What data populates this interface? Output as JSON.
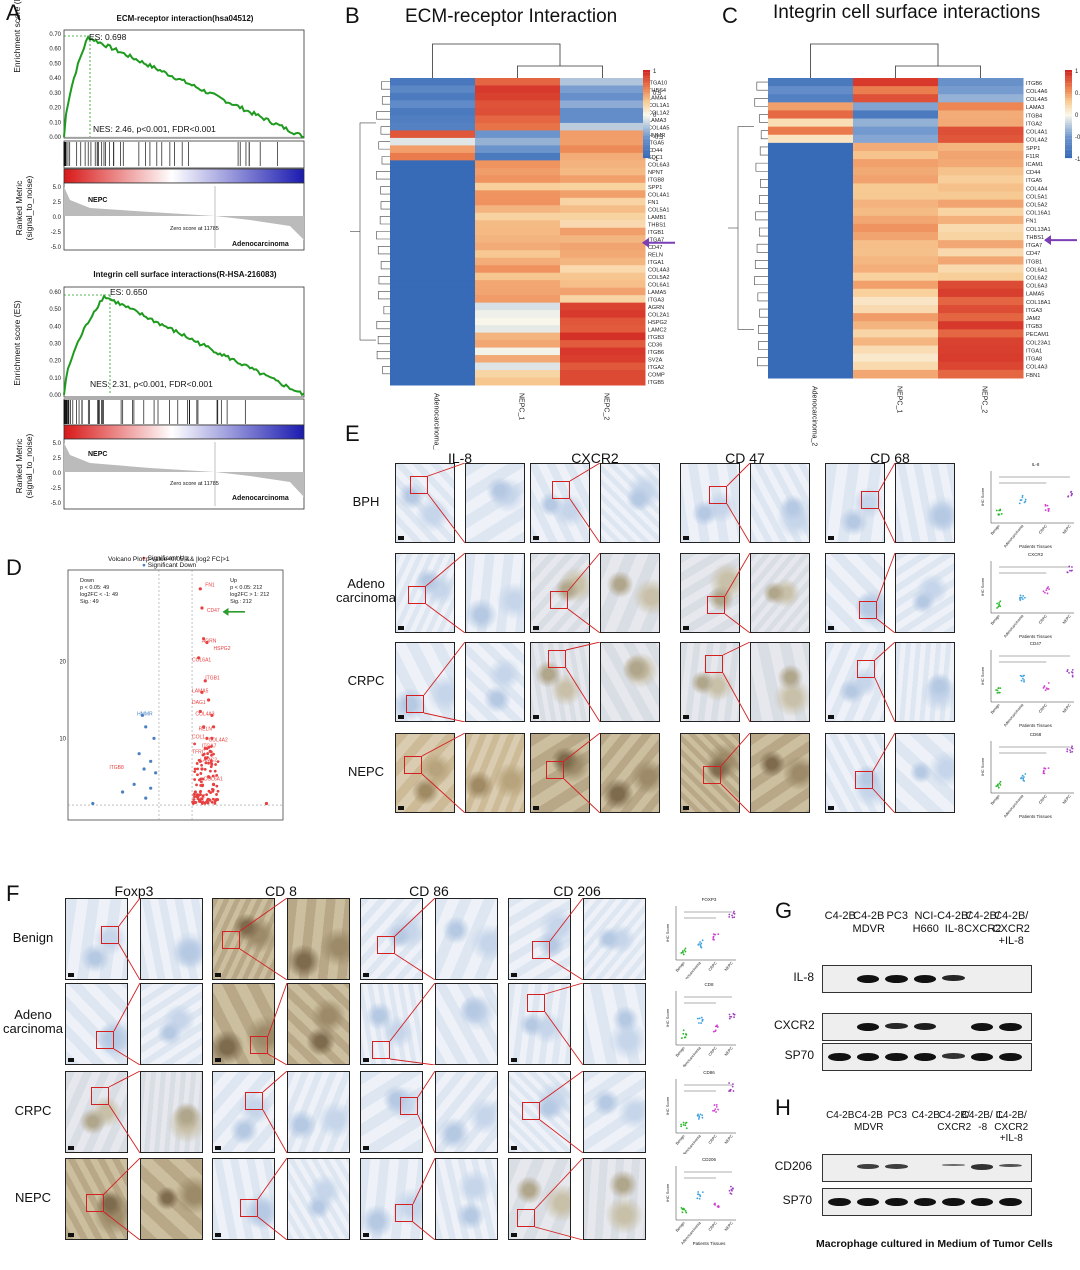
{
  "panel_letters": {
    "A": "A",
    "B": "B",
    "C": "C",
    "D": "D",
    "E": "E",
    "F": "F",
    "G": "G",
    "H": "H"
  },
  "gsea": [
    {
      "title": "ECM-receptor interaction(hsa04512)",
      "es_label": "ES: 0.698",
      "stats": "NES: 2.46, p<0.001, FDR<0.001",
      "ylabel_es": "Enrichment score (ES)",
      "ylabel_rank": "Ranked Metric (signal_to_noise)",
      "zero_label": "Zero score at 11785",
      "left_group": "NEPC",
      "right_group": "Adenocarcinoma",
      "es_ticks": [
        "0.70",
        "0.60",
        "0.50",
        "0.40",
        "0.30",
        "0.20",
        "0.10",
        "0.00"
      ],
      "rank_ticks": [
        "5.0",
        "2.5",
        "0.0",
        "-2.5",
        "-5.0"
      ]
    },
    {
      "title": "Integrin cell surface interactions(R-HSA-216083)",
      "es_label": "ES: 0.650",
      "stats": "NES: 2.31, p<0.001, FDR<0.001",
      "ylabel_es": "Enrichment score (ES)",
      "ylabel_rank": "Ranked Metric (signal_to_noise)",
      "zero_label": "Zero score at 11785",
      "left_group": "NEPC",
      "right_group": "Adenocarcinoma",
      "es_ticks": [
        "0.60",
        "0.50",
        "0.40",
        "0.30",
        "0.20",
        "0.10",
        "0.00"
      ],
      "rank_ticks": [
        "5.0",
        "2.5",
        "0.0",
        "-2.5",
        "-5.0"
      ]
    }
  ],
  "heatmaps": [
    {
      "title": "ECM-receptor Interaction",
      "columns": [
        "Adenocarcinoma_2",
        "NEPC_1",
        "NEPC_2"
      ],
      "legend_ticks": [
        "1",
        "0.5",
        "0",
        "-0.5",
        "-1"
      ],
      "genes": [
        "ITGA10",
        "THBS4",
        "LAMA4",
        "COL1A1",
        "COL1A2",
        "LAMA3",
        "COL4A5",
        "HMMR",
        "ITGA5",
        "CD44",
        "SDC1",
        "COL6A3",
        "NPNT",
        "ITGB8",
        "SPP1",
        "COL4A1",
        "FN1",
        "COL5A1",
        "LAMB1",
        "THBS1",
        "ITGB1",
        "ITGA7",
        "CD47",
        "RELN",
        "ITGA1",
        "COL4A3",
        "COL5A2",
        "COL6A1",
        "LAMA5",
        "ITGA3",
        "AGRN",
        "COL2A1",
        "HSPG2",
        "LAMC2",
        "ITGB3",
        "CD36",
        "ITGB6",
        "SV2A",
        "ITGA2",
        "COMP",
        "ITGB5"
      ]
    },
    {
      "title": "Integrin cell surface interactions",
      "columns": [
        "Adenocarcinoma_2",
        "NEPC_1",
        "NEPC_2"
      ],
      "legend_ticks": [
        "1",
        "0.5",
        "0",
        "-0.5",
        "-1"
      ],
      "genes": [
        "ITGB6",
        "COL4A6",
        "COL4A5",
        "LAMA3",
        "ITGB4",
        "ITGA2",
        "COL4A1",
        "COL4A2",
        "SPP1",
        "F11R",
        "ICAM1",
        "CD44",
        "ITGA5",
        "COL4A4",
        "COL5A1",
        "COL5A2",
        "COL16A1",
        "FN1",
        "COL13A1",
        "THBS1",
        "ITGA7",
        "CD47",
        "ITGB1",
        "COL6A1",
        "COL6A2",
        "COL6A3",
        "LAMA5",
        "COL18A1",
        "ITGA3",
        "JAM2",
        "ITGB3",
        "PECAM1",
        "COL23A1",
        "ITGA1",
        "ITGA8",
        "COL4A3",
        "FBN1"
      ]
    }
  ],
  "volcano": {
    "title": "Volcano Plot:p-value<0.05 && |log2 FC|>1",
    "legend": [
      "Significant Up",
      "Significant Down"
    ],
    "left_stats": [
      "Down",
      "p < 0.05: 49",
      "log2FC < -1: 49",
      "Sig.: 49"
    ],
    "right_stats": [
      "Up",
      "p < 0.05: 212",
      "log2FC > 1: 212",
      "Sig.: 212"
    ],
    "xlabel": "log2 FoldChange",
    "ylabel": "-log10 p-value",
    "xticks": [
      "-4",
      "0",
      "4"
    ],
    "yticks": [
      "20",
      "10"
    ],
    "gene_labels": [
      "FN1",
      "CD47",
      "AGRN",
      "HSPG2",
      "COL6A1",
      "ITGB1",
      "LAMA5",
      "DAG1",
      "COL4A3",
      "HMMR",
      "RELN",
      "COL1",
      "ITGA7",
      "TFRC",
      "COL4A2",
      "LAMC2",
      "ITGB8",
      "COL6A1",
      "SDC2"
    ],
    "chart_data": {
      "type": "scatter",
      "title": "Volcano Plot:p-value<0.05 && |log2 FC|>1",
      "xlabel": "log2 FoldChange",
      "ylabel": "-log10 p-value",
      "series": [
        {
          "name": "Significant Up",
          "points": [
            [
              1.5,
              29.5
            ],
            [
              1.6,
              27.0
            ],
            [
              1.7,
              23.0
            ],
            [
              1.9,
              22.5
            ],
            [
              1.4,
              20.5
            ],
            [
              1.8,
              17.5
            ],
            [
              1.6,
              16.0
            ],
            [
              2.0,
              15.0
            ],
            [
              1.5,
              13.5
            ],
            [
              2.2,
              13.0
            ],
            [
              1.7,
              11.5
            ],
            [
              2.3,
              11.5
            ],
            [
              1.9,
              10.0
            ],
            [
              2.2,
              10.0
            ],
            [
              1.8,
              8.7
            ],
            [
              2.1,
              8.3
            ],
            [
              1.5,
              7.0
            ],
            [
              1.6,
              6.0
            ],
            [
              2.0,
              5.0
            ],
            [
              2.3,
              4.0
            ],
            [
              1.2,
              3.0
            ],
            [
              1.3,
              2.5
            ],
            [
              1.5,
              2.0
            ],
            [
              2.5,
              2.0
            ],
            [
              5.5,
              1.5
            ]
          ]
        },
        {
          "name": "Significant Down",
          "points": [
            [
              -2.0,
              13.0
            ],
            [
              -1.8,
              11.5
            ],
            [
              -1.3,
              10.0
            ],
            [
              -2.2,
              8.0
            ],
            [
              -1.5,
              7.0
            ],
            [
              -1.9,
              6.0
            ],
            [
              -1.2,
              5.5
            ],
            [
              -2.5,
              4.0
            ],
            [
              -3.2,
              3.0
            ],
            [
              -1.5,
              3.5
            ],
            [
              -1.8,
              2.2
            ],
            [
              -5.0,
              1.5
            ]
          ]
        }
      ]
    }
  },
  "ihc_e": {
    "columns": [
      "IL-8",
      "CXCR2",
      "CD 47",
      "CD 68"
    ],
    "rows": [
      "BPH",
      "Adeno carcinoma",
      "CRPC",
      "NEPC"
    ],
    "plots": [
      {
        "title": "IL-8",
        "xlabel": "Patients Tissues",
        "ylabel": "IHC Score",
        "groups": [
          "Benign",
          "Adenocarcinoma",
          "CRPC",
          "NEPC"
        ]
      },
      {
        "title": "CXCR2",
        "xlabel": "Patients Tissues",
        "ylabel": "IHC Score",
        "groups": [
          "Benign",
          "Adenocarcinoma",
          "CRPC",
          "NEPC"
        ]
      },
      {
        "title": "CD47",
        "xlabel": "Patients Tissues",
        "ylabel": "IHC Score",
        "groups": [
          "Benign",
          "Adenocarcinoma",
          "CRPC",
          "NEPC"
        ]
      },
      {
        "title": "CD68",
        "xlabel": "Patients Tissues",
        "ylabel": "IHC Score",
        "groups": [
          "Benign",
          "Adenocarcinoma",
          "CRPC",
          "NEPC"
        ]
      }
    ]
  },
  "ihc_f": {
    "columns": [
      "Foxp3",
      "CD 8",
      "CD 86",
      "CD 206"
    ],
    "rows": [
      "Benign",
      "Adeno carcinoma",
      "CRPC",
      "NEPC"
    ],
    "plots": [
      {
        "title": "FOXP3",
        "xlabel": "Patients Tissues",
        "ylabel": "IHC Score",
        "groups": [
          "Benign",
          "Adenocarcinoma",
          "CRPC",
          "NEPC"
        ]
      },
      {
        "title": "CD8",
        "xlabel": "Patients Tissues",
        "ylabel": "IHC Score",
        "groups": [
          "Benign",
          "Adenocarcinoma",
          "CRPC",
          "NEPC"
        ]
      },
      {
        "title": "CD86",
        "xlabel": "Patients Tissues",
        "ylabel": "IHC Score",
        "groups": [
          "Benign",
          "Adenocarcinoma",
          "CRPC",
          "NEPC"
        ]
      },
      {
        "title": "CD206",
        "xlabel": "Patients Tissues",
        "ylabel": "IHC Score",
        "groups": [
          "Benign",
          "Adenocarcinoma",
          "CRPC",
          "NEPC"
        ]
      }
    ]
  },
  "western_g": {
    "lanes": [
      "C4-2B",
      "C4-2B MDVR",
      "PC3",
      "NCI-H660",
      "C4-2B/ IL-8",
      "C4-2B/ CXCR2",
      "C4-2B/ CXCR2 +IL-8"
    ],
    "rows": [
      "IL-8",
      "CXCR2",
      "SP70"
    ]
  },
  "western_h": {
    "lanes": [
      "C4-2B",
      "C4-2B MDVR",
      "PC3",
      "C4-2B",
      "C4-2B/ CXCR2",
      "C4-2B/ IL -8",
      "C4-2B/ CXCR2 +IL-8"
    ],
    "rows": [
      "CD206",
      "SP70"
    ],
    "caption": "Macrophage cultured in Medium of Tumor Cells"
  }
}
